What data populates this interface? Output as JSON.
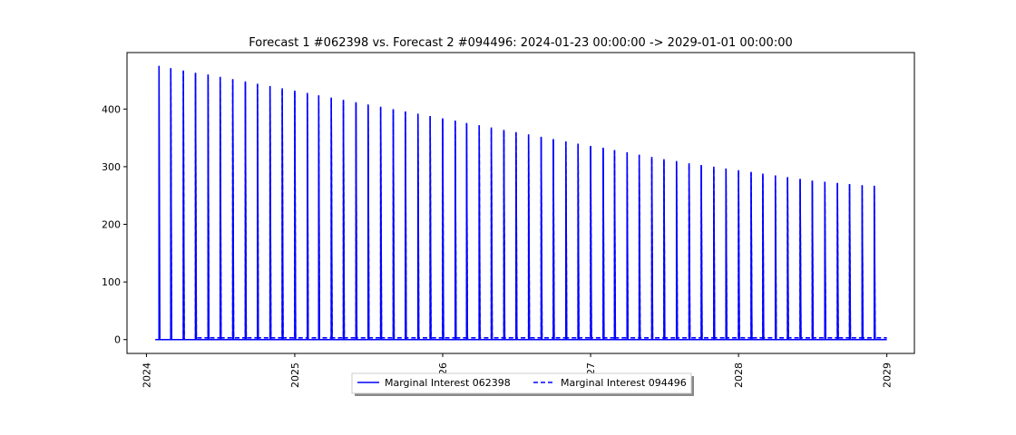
{
  "chart_data": {
    "type": "line",
    "title": "Forecast 1 #062398 vs. Forecast 2 #094496: 2024-01-23 00:00:00 -> 2029-01-01 00:00:00",
    "xlabel": "",
    "ylabel": "",
    "xlim": [
      "2023-11-14",
      "2029-03-10"
    ],
    "ylim": [
      -24,
      498
    ],
    "x_ticks": [
      "2024",
      "2025",
      "2026",
      "2027",
      "2028",
      "2029"
    ],
    "y_ticks": [
      0,
      100,
      200,
      300,
      400
    ],
    "grid": false,
    "legend": {
      "placement": "bottom-center",
      "columns": 2
    },
    "x_range": [
      "2024-01-23",
      "2029-01-01"
    ],
    "spike_dates": [
      "2024-02-01",
      "2024-03-01",
      "2024-04-01",
      "2024-05-01",
      "2024-06-01",
      "2024-07-01",
      "2024-08-01",
      "2024-09-01",
      "2024-10-01",
      "2024-11-01",
      "2024-12-01",
      "2025-01-01",
      "2025-02-01",
      "2025-03-01",
      "2025-04-01",
      "2025-05-01",
      "2025-06-01",
      "2025-07-01",
      "2025-08-01",
      "2025-09-01",
      "2025-10-01",
      "2025-11-01",
      "2025-12-01",
      "2026-01-01",
      "2026-02-01",
      "2026-03-01",
      "2026-04-01",
      "2026-05-01",
      "2026-06-01",
      "2026-07-01",
      "2026-08-01",
      "2026-09-01",
      "2026-10-01",
      "2026-11-01",
      "2026-12-01",
      "2027-01-01",
      "2027-02-01",
      "2027-03-01",
      "2027-04-01",
      "2027-05-01",
      "2027-06-01",
      "2027-07-01",
      "2027-08-01",
      "2027-09-01",
      "2027-10-01",
      "2027-11-01",
      "2027-12-01",
      "2028-01-01",
      "2028-02-01",
      "2028-03-01",
      "2028-04-01",
      "2028-05-01",
      "2028-06-01",
      "2028-07-01",
      "2028-08-01",
      "2028-09-01",
      "2028-10-01",
      "2028-11-01",
      "2028-12-01"
    ],
    "series": [
      {
        "name": "Marginal Interest 062398",
        "style": "solid",
        "color": "#0000ff",
        "baseline": 0,
        "spike_values": [
          475,
          471,
          467,
          463,
          460,
          456,
          452,
          448,
          444,
          440,
          436,
          432,
          428,
          424,
          420,
          416,
          412,
          408,
          404,
          400,
          396,
          392,
          388,
          384,
          380,
          376,
          372,
          368,
          364,
          360,
          356,
          352,
          348,
          344,
          340,
          336,
          333,
          329,
          325,
          321,
          317,
          313,
          310,
          306,
          303,
          300,
          297,
          294,
          291,
          288,
          285,
          282,
          279,
          276,
          274,
          272,
          270,
          268,
          267
        ]
      },
      {
        "name": "Marginal Interest 094496",
        "style": "dashed",
        "color": "#0000ff",
        "baseline": 0,
        "shift_date": "2024-05-01",
        "baseline_after_shift": 3,
        "spike_values": [
          0,
          469,
          465,
          461,
          458,
          454,
          450,
          446,
          442,
          438,
          434,
          430,
          426,
          422,
          418,
          414,
          410,
          406,
          402,
          398,
          394,
          390,
          386,
          382,
          378,
          374,
          370,
          366,
          362,
          358,
          354,
          350,
          346,
          342,
          338,
          334,
          331,
          327,
          323,
          319,
          315,
          311,
          308,
          304,
          301,
          298,
          295,
          292,
          289,
          286,
          283,
          280,
          277,
          275,
          273,
          271,
          269,
          267,
          266
        ]
      }
    ]
  }
}
